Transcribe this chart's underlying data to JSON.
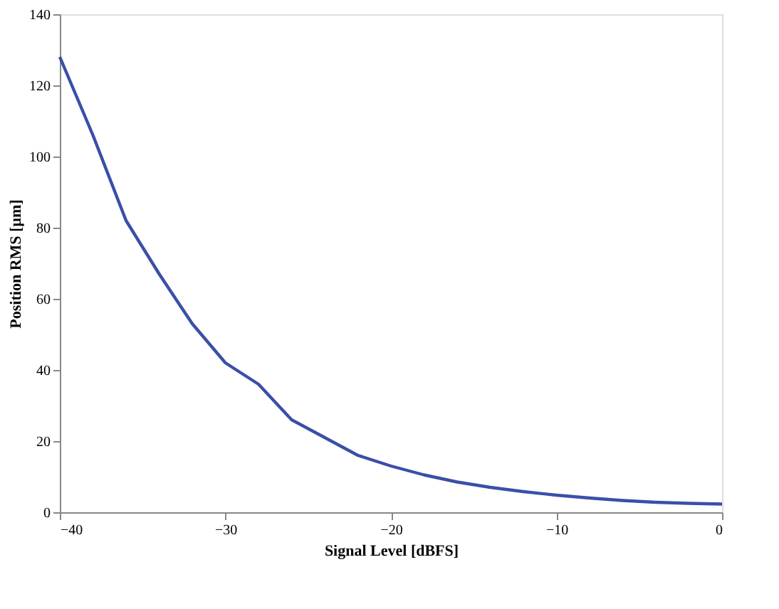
{
  "chart_data": {
    "type": "line",
    "xlabel": "Signal Level [dBFS]",
    "ylabel": "Position RMS [µm]",
    "x": [
      -40,
      -38,
      -36,
      -34,
      -32,
      -30,
      -29,
      -28,
      -27,
      -26,
      -24,
      -22,
      -20,
      -18,
      -16,
      -14,
      -12,
      -10,
      -8,
      -6,
      -4,
      -2,
      0
    ],
    "series": [
      {
        "color": "#3a4fa8",
        "values": [
          128,
          106,
          82,
          67,
          53,
          42,
          39,
          36,
          31,
          26,
          21,
          16,
          13,
          10.5,
          8.5,
          7,
          5.8,
          4.8,
          4,
          3.3,
          2.8,
          2.5,
          2.3
        ]
      }
    ],
    "xlim": [
      -40,
      0
    ],
    "xticks": [
      -40,
      -30,
      -20,
      -10,
      0
    ],
    "ylim": [
      0,
      140
    ],
    "yticks": [
      0,
      20,
      40,
      60,
      80,
      100,
      120,
      140
    ],
    "grid": false,
    "legend": false,
    "marker": "none",
    "line_style": "solid"
  }
}
